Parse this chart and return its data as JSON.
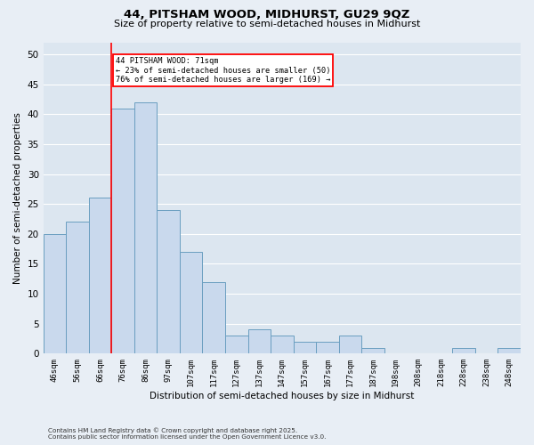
{
  "title_line1": "44, PITSHAM WOOD, MIDHURST, GU29 9QZ",
  "title_line2": "Size of property relative to semi-detached houses in Midhurst",
  "xlabel": "Distribution of semi-detached houses by size in Midhurst",
  "ylabel": "Number of semi-detached properties",
  "categories": [
    "46sqm",
    "56sqm",
    "66sqm",
    "76sqm",
    "86sqm",
    "97sqm",
    "107sqm",
    "117sqm",
    "127sqm",
    "137sqm",
    "147sqm",
    "157sqm",
    "167sqm",
    "177sqm",
    "187sqm",
    "198sqm",
    "208sqm",
    "218sqm",
    "228sqm",
    "238sqm",
    "248sqm"
  ],
  "values": [
    20,
    22,
    26,
    41,
    42,
    24,
    17,
    12,
    3,
    4,
    3,
    2,
    2,
    3,
    1,
    0,
    0,
    0,
    1,
    0,
    1
  ],
  "bar_color": "#c9d9ed",
  "bar_edge_color": "#6a9ec0",
  "bar_edge_width": 0.7,
  "property_line_x": 2.5,
  "property_label": "44 PITSHAM WOOD: 71sqm",
  "smaller_pct": 23,
  "smaller_count": 50,
  "larger_pct": 76,
  "larger_count": 169,
  "line_color": "red",
  "annotation_box_color": "red",
  "ylim": [
    0,
    52
  ],
  "yticks": [
    0,
    5,
    10,
    15,
    20,
    25,
    30,
    35,
    40,
    45,
    50
  ],
  "background_color": "#e8eef5",
  "plot_background_color": "#dce6f0",
  "grid_color": "white",
  "footer_line1": "Contains HM Land Registry data © Crown copyright and database right 2025.",
  "footer_line2": "Contains public sector information licensed under the Open Government Licence v3.0."
}
